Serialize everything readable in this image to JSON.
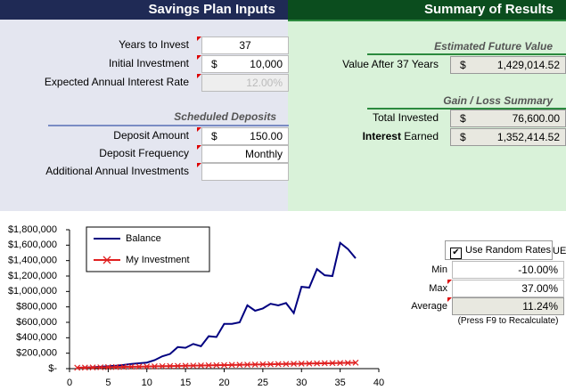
{
  "header": {
    "inputs_title": "Savings Plan Inputs",
    "results_title": "Summary of Results"
  },
  "inputs": [
    {
      "label": "Years to Invest",
      "value": "37"
    },
    {
      "label": "Initial Investment",
      "currency": "$",
      "value": "10,000"
    },
    {
      "label": "Expected Annual Interest Rate",
      "value": "12.00%"
    }
  ],
  "deposits": {
    "title": "Scheduled Deposits",
    "rows": [
      {
        "label": "Deposit Amount",
        "currency": "$",
        "value": "150.00"
      },
      {
        "label": "Deposit Frequency",
        "value": "Monthly"
      },
      {
        "label": "Additional Annual Investments"
      }
    ]
  },
  "results": {
    "future_title": "Estimated Future Value",
    "future_label": "Value After 37 Years",
    "future_currency": "$",
    "future_value": "1,429,014.52",
    "gain_title": "Gain / Loss Summary",
    "invested_label": "Total Invested",
    "invested_currency": "$",
    "invested_value": "76,600.00",
    "interest_label_bold": "Interest",
    "interest_label": "Earned",
    "interest_currency": "$",
    "interest_value": "1,352,414.52"
  },
  "random": {
    "checkbox": "Use Random Rates",
    "hidden_label": "UE",
    "rows": [
      {
        "label": "Min",
        "value": "-10.00%"
      },
      {
        "label": "Max",
        "value": "37.00%"
      },
      {
        "label": "Average",
        "value": "11.24%"
      }
    ],
    "note": "(Press F9 to Recalculate)"
  },
  "chart_data": {
    "type": "line",
    "x": [
      1,
      2,
      3,
      4,
      5,
      6,
      7,
      8,
      9,
      10,
      11,
      12,
      13,
      14,
      15,
      16,
      17,
      18,
      19,
      20,
      21,
      22,
      23,
      24,
      25,
      26,
      27,
      28,
      29,
      30,
      31,
      32,
      33,
      34,
      35,
      36,
      37
    ],
    "series": [
      {
        "name": "Balance",
        "color": "#000080",
        "values": [
          12000,
          15000,
          19000,
          24000,
          30000,
          38000,
          48000,
          60000,
          70000,
          78000,
          110000,
          160000,
          190000,
          280000,
          270000,
          320000,
          290000,
          420000,
          410000,
          580000,
          580000,
          600000,
          820000,
          750000,
          780000,
          840000,
          820000,
          850000,
          720000,
          1060000,
          1050000,
          1290000,
          1210000,
          1200000,
          1630000,
          1550000,
          1430000
        ]
      },
      {
        "name": "My Investment",
        "color": "#e02020",
        "marker": "x",
        "values": [
          11800,
          13600,
          15400,
          17200,
          19000,
          20800,
          22600,
          24400,
          26200,
          28000,
          29800,
          31600,
          33400,
          35200,
          37000,
          38800,
          40600,
          42400,
          44200,
          46000,
          47800,
          49600,
          51400,
          53200,
          55000,
          56800,
          58600,
          60400,
          62200,
          64000,
          65800,
          67600,
          69400,
          71200,
          73000,
          74800,
          76600
        ]
      }
    ],
    "xlim": [
      0,
      40
    ],
    "xticks": [
      0,
      5,
      10,
      15,
      20,
      25,
      30,
      35,
      40
    ],
    "ylim": [
      0,
      1800000
    ],
    "yticks": [
      {
        "value": 0,
        "label": "$-"
      },
      {
        "value": 200000,
        "label": "$200,000"
      },
      {
        "value": 400000,
        "label": "$400,000"
      },
      {
        "value": 600000,
        "label": "$600,000"
      },
      {
        "value": 800000,
        "label": "$800,000"
      },
      {
        "value": 1000000,
        "label": "$1,000,000"
      },
      {
        "value": 1200000,
        "label": "$1,200,000"
      },
      {
        "value": 1400000,
        "label": "$1,400,000"
      },
      {
        "value": 1600000,
        "label": "$1,600,000"
      },
      {
        "value": 1800000,
        "label": "$1,800,000"
      }
    ],
    "legend": "upper left"
  }
}
